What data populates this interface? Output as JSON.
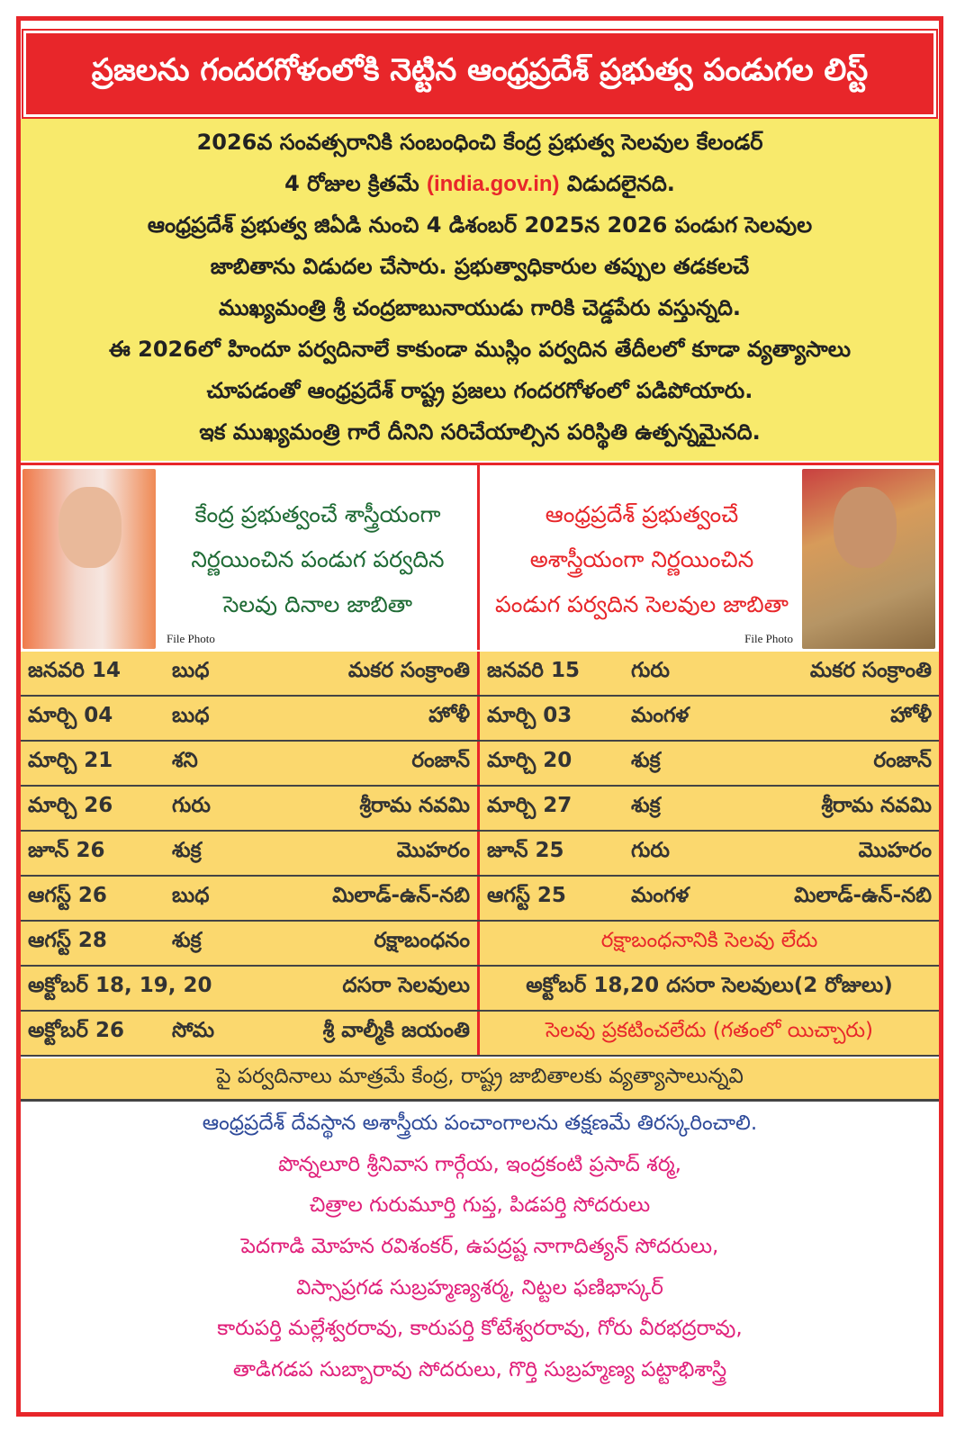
{
  "title": "ప్రజలను గందరగోళంలోకి నెట్టిన ఆంధ్రప్రదేశ్ ప్రభుత్వ పండుగల లిస్ట్",
  "intro": {
    "line1": "2026వ సంవత్సరానికి సంబంధించి కేంద్ర ప్రభుత్వ సెలవుల కేలండర్",
    "line2_pre": "4 రోజుల క్రితమే",
    "line2_link": "(india.gov.in)",
    "line2_post": "విడుదలైనది.",
    "line3": "ఆంధ్రప్రదేశ్ ప్రభుత్వ జిఏడి నుంచి 4 డిశంబర్ 2025న 2026 పండుగ సెలవుల",
    "line4": "జాబితాను విడుదల చేసారు. ప్రభుత్వాధికారుల తప్పుల తడకలచే",
    "line5": "ముఖ్యమంత్రి శ్రీ చంద్రబాబునాయుడు గారికి చెడ్డపేరు వస్తున్నది.",
    "line6": "ఈ 2026లో హిందూ పర్వదినాలే కాకుండా ముస్లిం పర్వదిన తేదీలలో కూడా వ్యత్యాసాలు",
    "line7": "చూపడంతో ఆంధ్రప్రదేశ్ రాష్ట్ర ప్రజలు గందరగోళంలో పడిపోయారు.",
    "line8": "ఇక ముఖ్యమంత్రి గారే దీనిని సరిచేయాల్సిన పరిస్థితి ఉత్పన్నమైనది."
  },
  "left_panel": {
    "heading": [
      "కేంద్ర ప్రభుత్వంచే శాస్త్రీయంగా",
      "నిర్ణయించిన పండుగ పర్వదిన",
      "సెలవు దినాల జాబితా"
    ],
    "caption": "File Photo"
  },
  "right_panel": {
    "heading": [
      "ఆంధ్రప్రదేశ్ ప్రభుత్వంచే",
      "అశాస్త్రీయంగా నిర్ణయించిన",
      "పండుగ పర్వదిన సెలవుల జాబితా"
    ],
    "caption": "File Photo"
  },
  "rows": [
    {
      "left": {
        "date": "జనవరి 14",
        "day": "బుధ",
        "festival": "మకర సంక్రాంతి"
      },
      "right": {
        "date": "జనవరి 15",
        "day": "గురు",
        "festival": "మకర సంక్రాంతి"
      }
    },
    {
      "left": {
        "date": "మార్చి 04",
        "day": "బుధ",
        "festival": "హోళీ"
      },
      "right": {
        "date": "మార్చి 03",
        "day": "మంగళ",
        "festival": "హోళీ"
      }
    },
    {
      "left": {
        "date": "మార్చి 21",
        "day": "శని",
        "festival": "రంజాన్"
      },
      "right": {
        "date": "మార్చి 20",
        "day": "శుక్ర",
        "festival": "రంజాన్"
      }
    },
    {
      "left": {
        "date": "మార్చి 26",
        "day": "గురు",
        "festival": "శ్రీరామ నవమి"
      },
      "right": {
        "date": "మార్చి 27",
        "day": "శుక్ర",
        "festival": "శ్రీరామ నవమి"
      }
    },
    {
      "left": {
        "date": "జూన్ 26",
        "day": "శుక్ర",
        "festival": "మొహరం"
      },
      "right": {
        "date": "జూన్ 25",
        "day": "గురు",
        "festival": "మొహరం"
      }
    },
    {
      "left": {
        "date": "ఆగస్ట్ 26",
        "day": "బుధ",
        "festival": "మిలాడ్-ఉన్-నబి"
      },
      "right": {
        "date": "ఆగస్ట్ 25",
        "day": "మంగళ",
        "festival": "మిలాడ్-ఉన్-నబి"
      }
    },
    {
      "left": {
        "date": "ఆగస్ట్ 28",
        "day": "శుక్ర",
        "festival": "రక్షాబంధనం"
      },
      "right": {
        "note": "రక్షాబంధనానికి సెలవు లేదు",
        "note_style": "red"
      }
    },
    {
      "left": {
        "date": "అక్టోబర్ 18, 19, 20",
        "day": "",
        "festival": "దసరా సెలవులు"
      },
      "right": {
        "note": "అక్టోబర్ 18,20 దసరా సెలవులు(2 రోజులు)",
        "note_style": "dark"
      }
    },
    {
      "left": {
        "date": "అక్టోబర్ 26",
        "day": "సోమ",
        "festival": "శ్రీ వాల్మీకి జయంతి"
      },
      "right": {
        "note": "సెలవు ప్రకటించలేదు (గతంలో యిచ్చారు)",
        "note_style": "red"
      }
    }
  ],
  "summary": "పై పర్వదినాలు మాత్రమే కేంద్ర, రాష్ట్ర జాబితాలకు వ్యత్యాసాలున్నవి",
  "bottom": {
    "lead": "ఆంధ్రప్రదేశ్ దేవస్థాన అశాస్త్రీయ పంచాంగాలను తక్షణమే తిరస్కరించాలి.",
    "names": [
      "పొన్నలూరి శ్రీనివాస గార్గేయ, ఇంద్రకంటి ప్రసాద్ శర్మ,",
      "చిత్రాల గురుమూర్తి గుప్త, పిడపర్తి సోదరులు",
      "పెదగాడి మోహన రవిశంకర్, ఉపద్రష్ట నాగాదిత్యన్ సోదరులు,",
      "విస్సాప్రగడ సుబ్రహ్మణ్యశర్మ, నిట్టల ఫణిభాస్కర్",
      "కారుపర్తి మల్లేశ్వరరావు, కారుపర్తి కోటేశ్వరరావు, గోరు వీరభద్రరావు,",
      "తాడిగడప సుబ్బారావు సోదరులు, గొర్తి సుబ్రహ్మణ్య పట్టాభిశాస్త్రి"
    ]
  },
  "colors": {
    "red": "#e8262a",
    "yellow": "#f8ea6c",
    "row": "#fbd86e",
    "green": "#1f6b35",
    "blue": "#2e4a9a",
    "pink": "#e0207a"
  }
}
